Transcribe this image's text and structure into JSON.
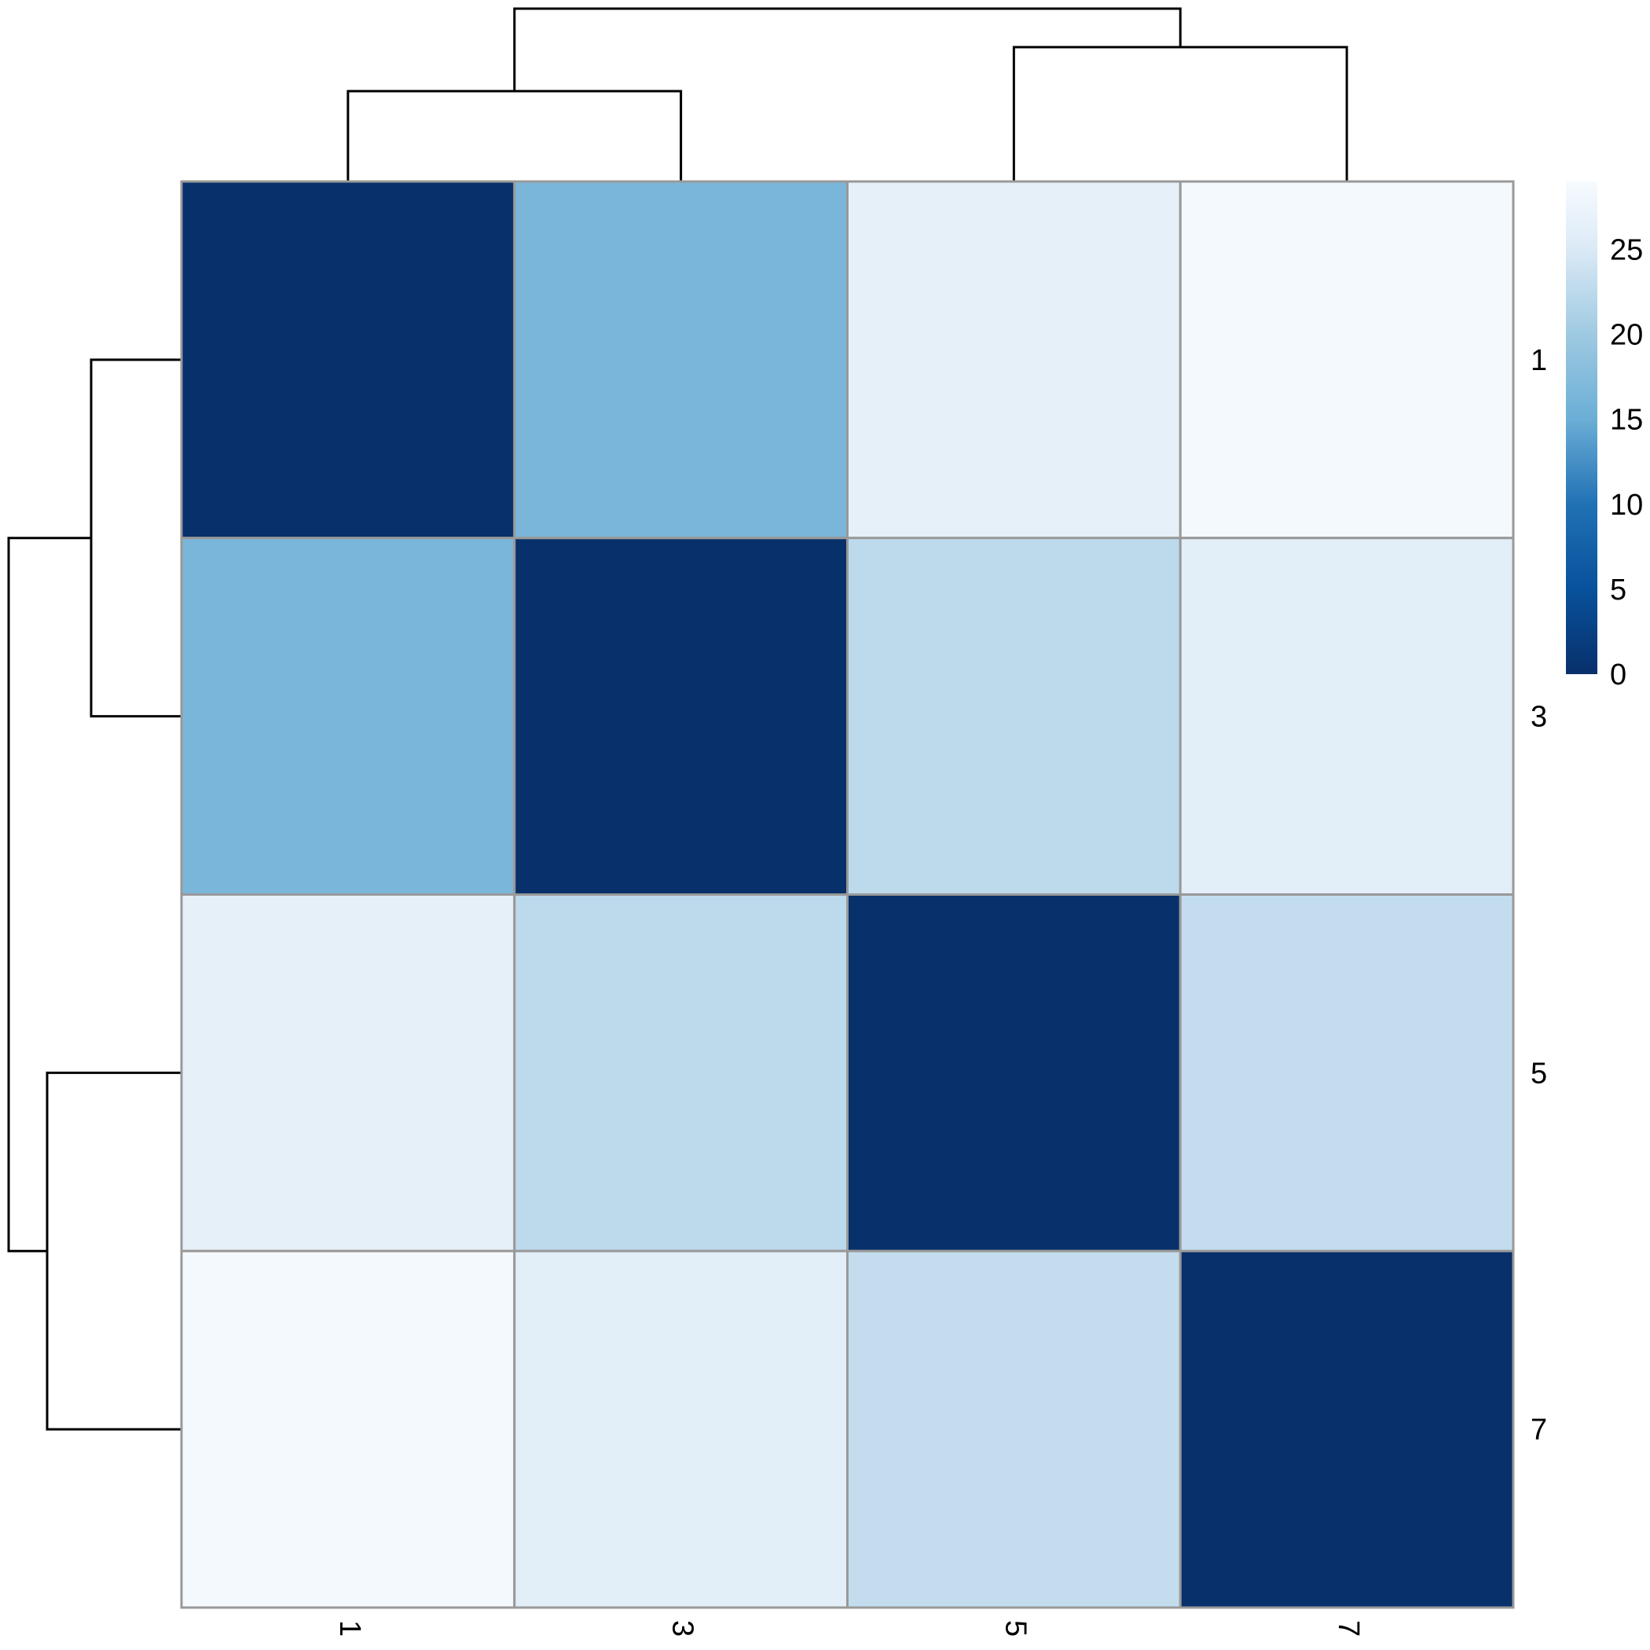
{
  "chart_data": {
    "type": "heatmap",
    "title": "",
    "xlabel": "",
    "ylabel": "",
    "rows": [
      "1",
      "3",
      "5",
      "7"
    ],
    "columns": [
      "1",
      "3",
      "5",
      "7"
    ],
    "values": [
      [
        0,
        16.5,
        26.5,
        28.5
      ],
      [
        16.5,
        0,
        22.5,
        26
      ],
      [
        26.5,
        22.5,
        0,
        23
      ],
      [
        28.5,
        26,
        23,
        0
      ]
    ],
    "colorscale": {
      "min": 0,
      "max": 29,
      "stops": [
        {
          "value": 0,
          "color": "#08306b"
        },
        {
          "value": 5,
          "color": "#08519c"
        },
        {
          "value": 10,
          "color": "#2171b5"
        },
        {
          "value": 15,
          "color": "#6baed6"
        },
        {
          "value": 20,
          "color": "#9ecae1"
        },
        {
          "value": 25,
          "color": "#dbe9f6"
        },
        {
          "value": 29,
          "color": "#f7fbff"
        }
      ],
      "ticks": [
        "0",
        "5",
        "10",
        "15",
        "20",
        "25"
      ]
    },
    "row_dendrogram": true,
    "column_dendrogram": true,
    "cell_border_color": "#999999",
    "legend_placement": "top-right"
  }
}
